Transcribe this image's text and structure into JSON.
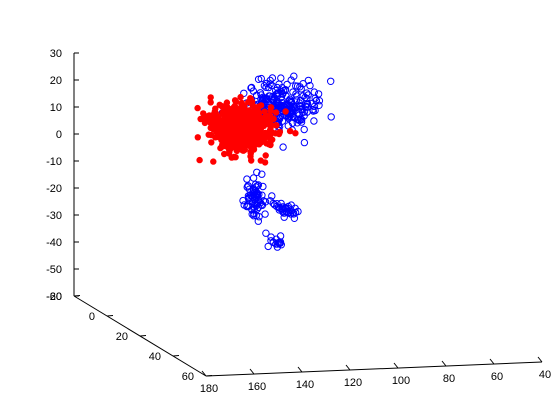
{
  "chart_data": {
    "type": "scatter",
    "projection": "3d",
    "grid": false,
    "legend": "none",
    "title": "",
    "xlabel": "",
    "ylabel": "",
    "zlabel": "",
    "xlim": [
      40,
      180
    ],
    "ylim": [
      -20,
      60
    ],
    "zlim": [
      -60,
      30
    ],
    "x_ticks": [
      "40",
      "60",
      "80",
      "100",
      "120",
      "140",
      "160",
      "180"
    ],
    "y_ticks": [
      "-20",
      "0",
      "20",
      "40",
      "60"
    ],
    "z_ticks": [
      "30",
      "20",
      "10",
      "0",
      "-10",
      "-20",
      "-30",
      "-40",
      "-50",
      "-60"
    ],
    "series": [
      {
        "marker": "open-circle",
        "color": "#0000ff",
        "clusters": [
          {
            "center": [
              95,
              -18,
              8
            ],
            "spread": [
              12,
              6,
              7
            ],
            "count": 250
          },
          {
            "center": [
              125,
              10,
              -15
            ],
            "spread": [
              3,
              4,
              7
            ],
            "count": 70
          },
          {
            "center": [
              125,
              30,
              -12
            ],
            "spread": [
              2,
              5,
              1.5
            ],
            "count": 35
          },
          {
            "center": [
              150,
              60,
              -12
            ],
            "spread": [
              3,
              2,
              1.5
            ],
            "count": 15
          }
        ]
      },
      {
        "marker": "filled-circle",
        "color": "#ff0000",
        "clusters": [
          {
            "center": [
              112,
              -18,
              0
            ],
            "spread": [
              10,
              5,
              7
            ],
            "count": 600
          }
        ]
      }
    ]
  }
}
